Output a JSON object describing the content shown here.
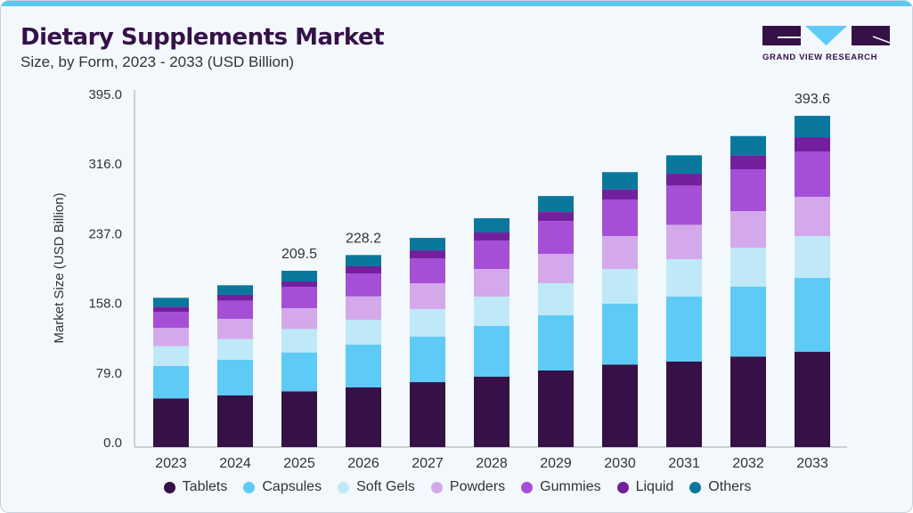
{
  "header": {
    "title": "Dietary Supplements Market",
    "subtitle": "Size, by Form, 2023 - 2033 (USD Billion)"
  },
  "logo": {
    "text": "GRAND VIEW RESEARCH"
  },
  "chart_data": {
    "type": "bar",
    "stacked": true,
    "title": "Dietary Supplements Market",
    "subtitle": "Size, by Form, 2023 - 2033 (USD Billion)",
    "xlabel": "",
    "ylabel": "Market Size (USD Billion)",
    "yticks": [
      "0.0",
      "79.0",
      "158.0",
      "237.0",
      "316.0",
      "395.0"
    ],
    "ylim": [
      0,
      395
    ],
    "grid": false,
    "legend": "bottom",
    "categories": [
      "2023",
      "2024",
      "2025",
      "2026",
      "2027",
      "2028",
      "2029",
      "2030",
      "2031",
      "2032",
      "2033"
    ],
    "series": [
      {
        "name": "Tablets",
        "color": "#361148",
        "values": [
          57.9,
          61.4,
          66.3,
          70.9,
          77.2,
          83.6,
          91.0,
          98.1,
          101.6,
          107.6,
          113.2
        ]
      },
      {
        "name": "Capsules",
        "color": "#5ecbf6",
        "values": [
          38.4,
          42.3,
          46.2,
          50.8,
          54.0,
          60.3,
          65.6,
          72.3,
          77.2,
          83.2,
          87.8
        ]
      },
      {
        "name": "Soft Gels",
        "color": "#bfe9f8",
        "values": [
          23.6,
          24.7,
          27.8,
          29.6,
          32.8,
          34.9,
          38.1,
          41.3,
          44.4,
          45.9,
          49.7
        ]
      },
      {
        "name": "Powders",
        "color": "#d4a9ec",
        "values": [
          21.9,
          24.0,
          24.8,
          27.8,
          30.7,
          32.8,
          34.9,
          39.1,
          40.9,
          43.7,
          46.6
        ]
      },
      {
        "name": "Gummies",
        "color": "#a54fd7",
        "values": [
          19.0,
          21.5,
          25.4,
          27.2,
          29.6,
          33.9,
          39.1,
          43.1,
          46.6,
          49.7,
          54.0
        ]
      },
      {
        "name": "Liquid",
        "color": "#72209e",
        "values": [
          6.0,
          7.1,
          6.3,
          8.5,
          9.5,
          9.5,
          10.6,
          12.3,
          14.1,
          16.6,
          16.9
        ]
      },
      {
        "name": "Others",
        "color": "#0a789d",
        "values": [
          10.6,
          11.3,
          12.7,
          13.4,
          14.8,
          16.9,
          19.0,
          20.5,
          21.9,
          22.9,
          25.4
        ]
      }
    ],
    "annotations": [
      {
        "category": "2025",
        "text": "209.5"
      },
      {
        "category": "2026",
        "text": "228.2"
      },
      {
        "category": "2033",
        "text": "393.6"
      }
    ]
  }
}
